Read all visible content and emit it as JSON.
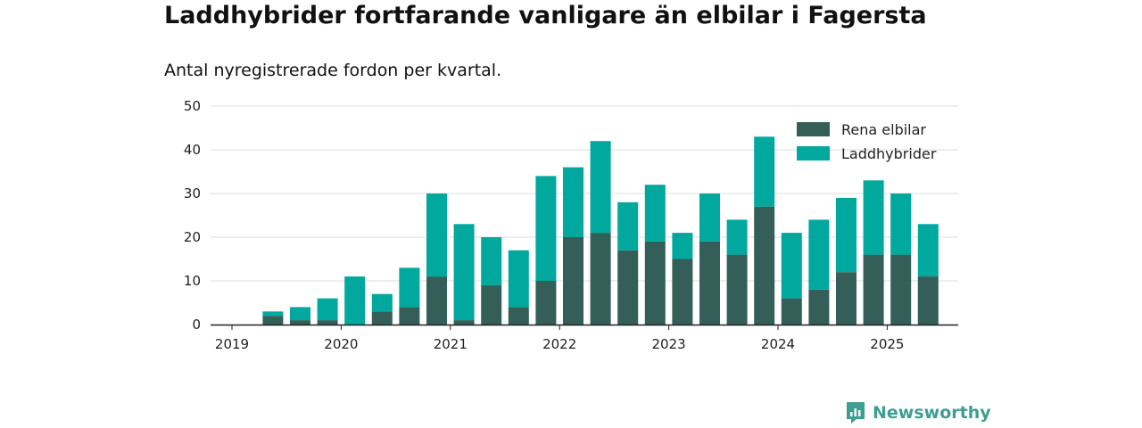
{
  "title": "Laddhybrider fortfarande vanligare än elbilar i Fagersta",
  "subtitle": "Antal nyregistrerade fordon per kvartal.",
  "brand": "Newsworthy",
  "colors": {
    "rena": "#335f58",
    "ladd": "#00a89d",
    "grid": "#dddddd",
    "axis": "#222222",
    "brand": "#3e9e90"
  },
  "chart_data": {
    "type": "bar",
    "stacked": true,
    "categories": [
      "2019 Q2",
      "2019 Q3",
      "2019 Q4",
      "2020 Q1",
      "2020 Q2",
      "2020 Q3",
      "2020 Q4",
      "2021 Q1",
      "2021 Q2",
      "2021 Q3",
      "2021 Q4",
      "2022 Q1",
      "2022 Q2",
      "2022 Q3",
      "2022 Q4",
      "2023 Q1",
      "2023 Q2",
      "2023 Q3",
      "2023 Q4",
      "2024 Q1",
      "2024 Q2",
      "2024 Q3",
      "2024 Q4",
      "2025 Q1",
      "2025 Q2"
    ],
    "series": [
      {
        "name": "Rena elbilar",
        "values": [
          2,
          1,
          1,
          0,
          3,
          4,
          11,
          1,
          9,
          4,
          10,
          20,
          21,
          17,
          19,
          15,
          19,
          16,
          27,
          6,
          8,
          12,
          16,
          16,
          11
        ]
      },
      {
        "name": "Laddhybrider",
        "values": [
          1,
          3,
          5,
          11,
          4,
          9,
          19,
          22,
          11,
          13,
          24,
          16,
          21,
          11,
          13,
          6,
          11,
          8,
          16,
          15,
          16,
          17,
          17,
          14,
          12
        ]
      }
    ],
    "x_ticks": [
      "2019",
      "2020",
      "2021",
      "2022",
      "2023",
      "2024",
      "2025"
    ],
    "y_ticks": [
      0,
      10,
      20,
      30,
      40,
      50
    ],
    "ylim": [
      0,
      50
    ],
    "legend_position": "top-right",
    "grid": true
  }
}
